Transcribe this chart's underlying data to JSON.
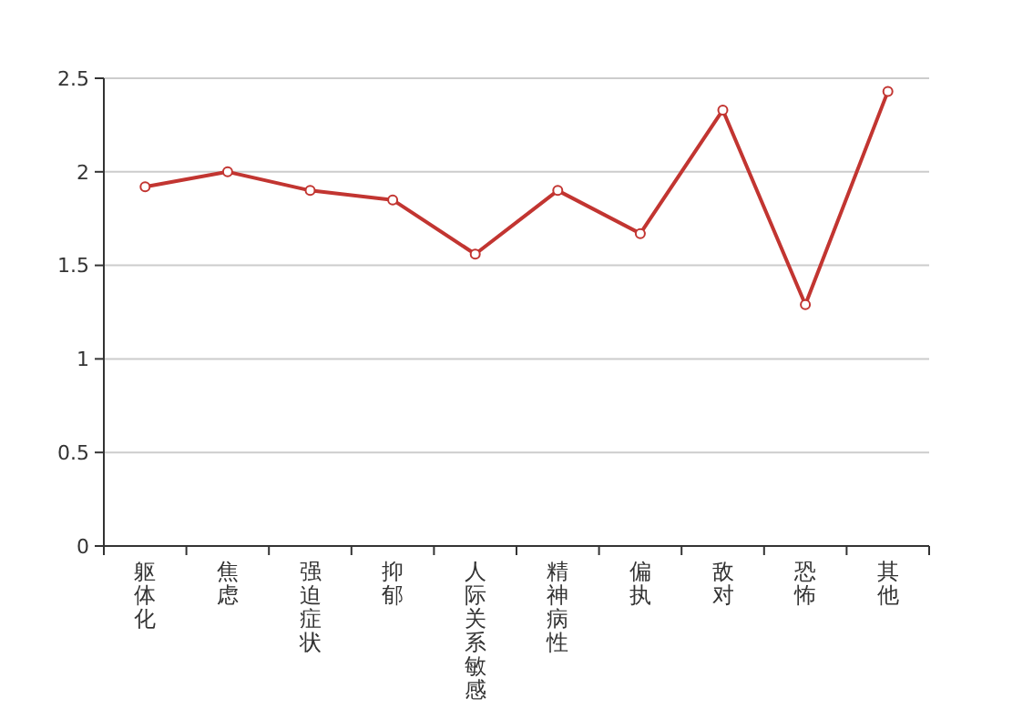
{
  "chart_data": {
    "type": "line",
    "categories": [
      "躯体化",
      "焦虑",
      "强迫症状",
      "抑郁",
      "人际关系敏感",
      "精神病性",
      "偏执",
      "敌对",
      "恐怖",
      "其他"
    ],
    "series": [
      {
        "color": "#c23531",
        "values": [
          1.92,
          2.0,
          1.9,
          1.85,
          1.56,
          1.9,
          1.67,
          2.33,
          1.29,
          2.43
        ]
      }
    ],
    "ylim": [
      0,
      2.5
    ],
    "yticks": [
      0,
      0.5,
      1,
      1.5,
      2,
      2.5
    ],
    "grid": "y",
    "marker": "circle",
    "line_style": "solid"
  }
}
